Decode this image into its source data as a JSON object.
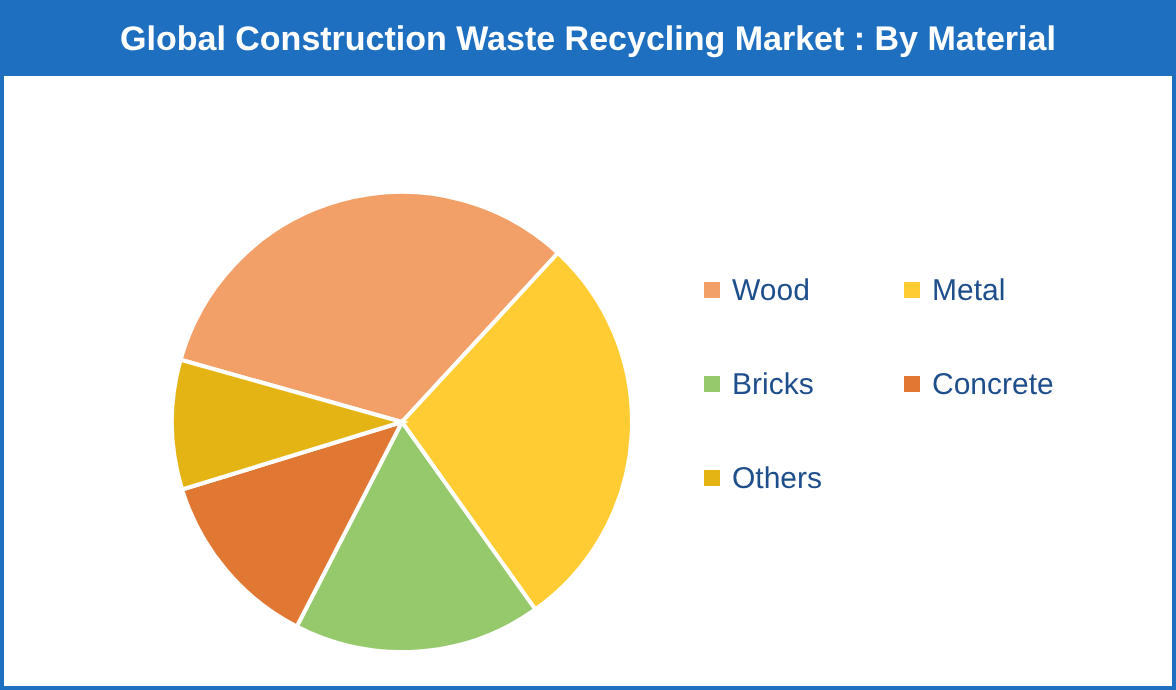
{
  "chart_data": {
    "type": "pie",
    "title": "Global Construction Waste Recycling Market : By Material",
    "categories": [
      "Wood",
      "Metal",
      "Bricks",
      "Concrete",
      "Others"
    ],
    "values": [
      32.5,
      28.3,
      17.4,
      12.7,
      9.1
    ],
    "colors": [
      "#f2a068",
      "#ffcc33",
      "#96c86c",
      "#e07834",
      "#e4b414"
    ],
    "legend": "right"
  }
}
